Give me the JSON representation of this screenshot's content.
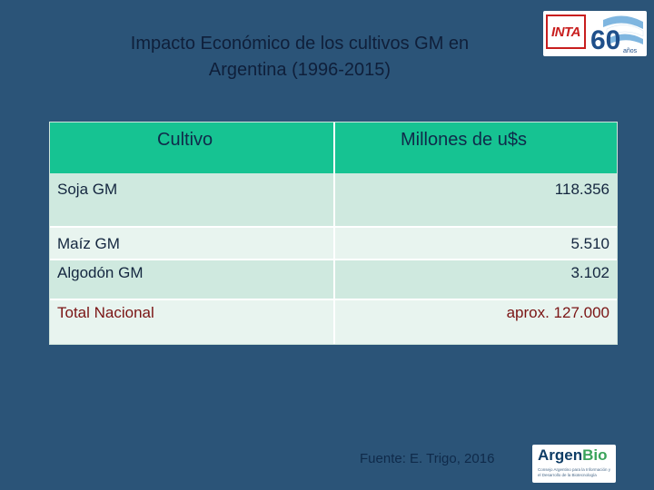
{
  "title": {
    "line1": "Impacto Económico  de los cultivos GM en",
    "line2": "Argentina (1996-2015)"
  },
  "logos": {
    "inta": {
      "label": "INTA",
      "anniversary_number": "60",
      "anniversary_word": "años"
    },
    "argenbio": {
      "name_part1": "Argen",
      "name_part2": "Bio",
      "subtitle": "Consejo Argentino para la Información y el Desarrollo de la Biotecnología"
    }
  },
  "table": {
    "headers": [
      "Cultivo",
      "Millones de u$s"
    ],
    "rows": [
      {
        "crop": "Soja GM",
        "value": "118.356"
      },
      {
        "crop": "Maíz GM",
        "value": "5.510"
      },
      {
        "crop": "Algodón GM",
        "value": "3.102"
      },
      {
        "crop": "Total Nacional",
        "value": "aprox. 127.000"
      }
    ]
  },
  "source": "Fuente: E. Trigo, 2016",
  "colors": {
    "background": "#2b5478",
    "header": "#16c392",
    "row_dark": "#cfe9df",
    "row_light": "#e8f4ef",
    "total_text": "#7a1414"
  }
}
